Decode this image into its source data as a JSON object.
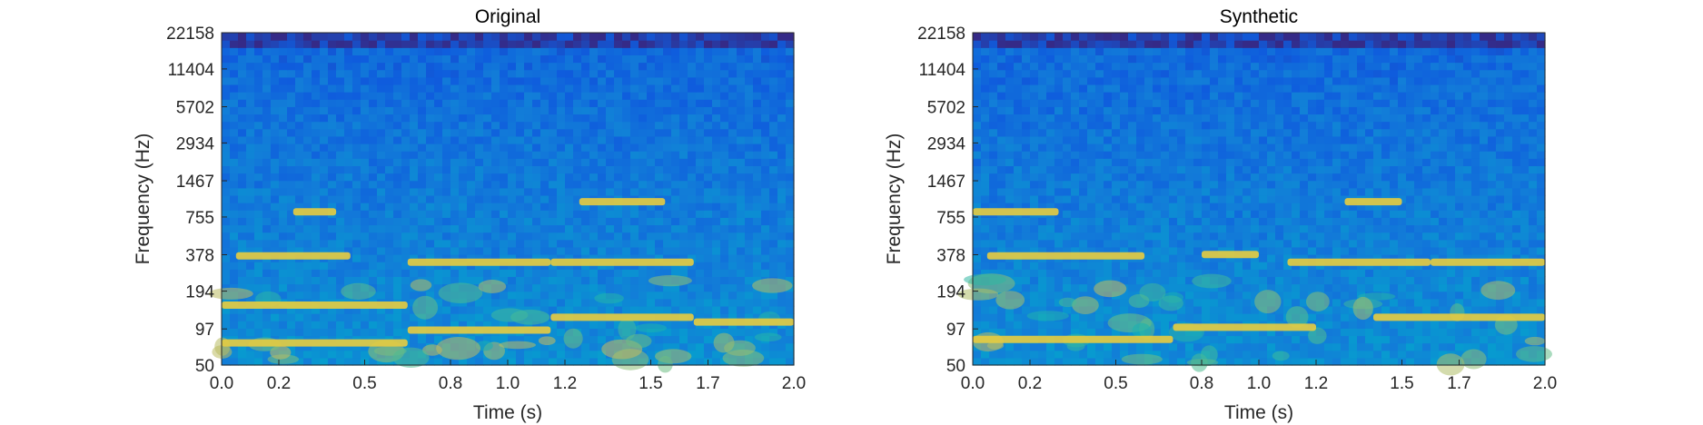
{
  "chart_data": [
    {
      "type": "heatmap",
      "title": "Original",
      "xlabel": "Time (s)",
      "ylabel": "Frequency (Hz)",
      "xlim": [
        0.0,
        2.0
      ],
      "ylim": [
        50,
        22158
      ],
      "yscale": "log",
      "xticks": [
        "0.0",
        "0.2",
        "0.5",
        "0.8",
        "1.0",
        "1.2",
        "1.5",
        "1.7",
        "2.0"
      ],
      "yticks": [
        "22158",
        "11404",
        "5702",
        "2934",
        "1467",
        "755",
        "378",
        "194",
        "97",
        "50"
      ],
      "colormap": "parula",
      "harmonics": [
        {
          "t0": 0.0,
          "t1": 0.65,
          "f": 75
        },
        {
          "t0": 0.0,
          "t1": 0.65,
          "f": 150
        },
        {
          "t0": 0.05,
          "t1": 0.45,
          "f": 370
        },
        {
          "t0": 0.25,
          "t1": 0.4,
          "f": 830
        },
        {
          "t0": 0.65,
          "t1": 1.15,
          "f": 95
        },
        {
          "t0": 0.65,
          "t1": 1.15,
          "f": 330
        },
        {
          "t0": 1.15,
          "t1": 1.65,
          "f": 120
        },
        {
          "t0": 1.15,
          "t1": 1.65,
          "f": 330
        },
        {
          "t0": 1.25,
          "t1": 1.55,
          "f": 1000
        },
        {
          "t0": 1.65,
          "t1": 2.0,
          "f": 110
        }
      ]
    },
    {
      "type": "heatmap",
      "title": "Synthetic",
      "xlabel": "Time (s)",
      "ylabel": "Frequency (Hz)",
      "xlim": [
        0.0,
        2.0
      ],
      "ylim": [
        50,
        22158
      ],
      "yscale": "log",
      "xticks": [
        "0.0",
        "0.2",
        "0.5",
        "0.8",
        "1.0",
        "1.2",
        "1.5",
        "1.7",
        "2.0"
      ],
      "yticks": [
        "22158",
        "11404",
        "5702",
        "2934",
        "1467",
        "755",
        "378",
        "194",
        "97",
        "50"
      ],
      "colormap": "parula",
      "harmonics": [
        {
          "t0": 0.0,
          "t1": 0.7,
          "f": 80
        },
        {
          "t0": 0.05,
          "t1": 0.6,
          "f": 370
        },
        {
          "t0": 0.0,
          "t1": 0.3,
          "f": 830
        },
        {
          "t0": 0.7,
          "t1": 1.2,
          "f": 100
        },
        {
          "t0": 0.8,
          "t1": 1.0,
          "f": 380
        },
        {
          "t0": 1.1,
          "t1": 1.6,
          "f": 330
        },
        {
          "t0": 1.3,
          "t1": 1.5,
          "f": 1000
        },
        {
          "t0": 1.4,
          "t1": 2.0,
          "f": 120
        },
        {
          "t0": 1.6,
          "t1": 2.0,
          "f": 330
        }
      ]
    }
  ]
}
